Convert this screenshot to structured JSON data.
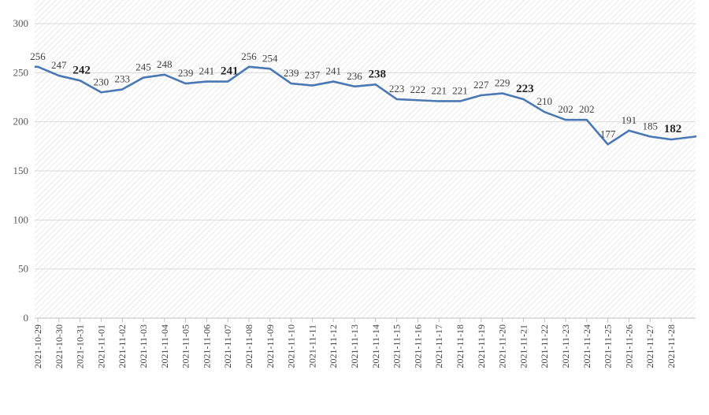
{
  "chart_data": {
    "type": "line",
    "x": [
      "2021-10-29",
      "2021-10-30",
      "2021-10-31",
      "2021-11-01",
      "2021-11-02",
      "2021-11-03",
      "2021-11-04",
      "2021-11-05",
      "2021-11-06",
      "2021-11-07",
      "2021-11-08",
      "2021-11-09",
      "2021-11-10",
      "2021-11-11",
      "2021-11-12",
      "2021-11-13",
      "2021-11-14",
      "2021-11-15",
      "2021-11-16",
      "2021-11-17",
      "2021-11-18",
      "2021-11-19",
      "2021-11-20",
      "2021-11-21",
      "2021-11-22",
      "2021-11-23",
      "2021-11-24",
      "2021-11-25",
      "2021-11-26",
      "2021-11-27",
      "2021-11-28"
    ],
    "values": [
      256,
      247,
      242,
      230,
      233,
      245,
      248,
      239,
      241,
      241,
      256,
      254,
      239,
      237,
      241,
      236,
      238,
      223,
      222,
      221,
      221,
      227,
      229,
      223,
      210,
      202,
      202,
      177,
      191,
      185,
      182
    ],
    "extra_tail_value": 185,
    "bold_label_indices": [
      2,
      9,
      16,
      23,
      30
    ],
    "ylim": [
      0,
      300
    ],
    "yticks": [
      0,
      50,
      100,
      150,
      200,
      250,
      300
    ],
    "grid": true,
    "line_color": "#4a78b5",
    "title": "",
    "xlabel": "",
    "ylabel": ""
  },
  "caption": ""
}
